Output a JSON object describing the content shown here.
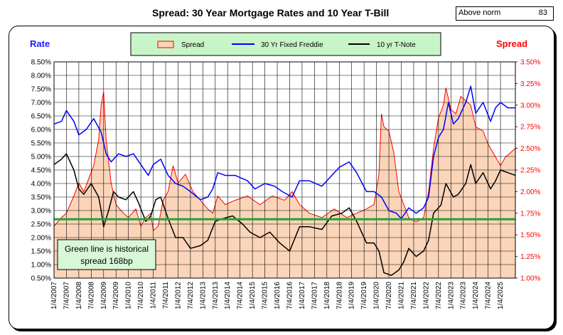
{
  "header": {
    "title": "Spread:  30 Year Mortgage Rates and 10 Year T-Bill",
    "indicator_label": "Above norm",
    "indicator_value": "83"
  },
  "colors": {
    "spread_fill": "#fbd5b9",
    "spread_line": "#ff0000",
    "mortgage_line": "#0000ff",
    "tnote_line": "#000000",
    "norm_line": "#22a535",
    "legend_bg": "#c8f5c8",
    "annotation_bg": "#d7f7d7",
    "left_axis_label": "#1a1aff",
    "right_axis_label": "#ff0000"
  },
  "chart_data": {
    "type": "line",
    "title": "Spread:  30 Year Mortgage Rates and 10 Year T-Bill",
    "ylabel": "Rate",
    "y2label": "Spread",
    "ylim": [
      0.5,
      8.5
    ],
    "y2lim": [
      1.0,
      3.5
    ],
    "yticks": [
      "0.50%",
      "1.00%",
      "1.50%",
      "2.00%",
      "2.50%",
      "3.00%",
      "3.50%",
      "4.00%",
      "4.50%",
      "5.00%",
      "5.50%",
      "6.00%",
      "6.50%",
      "7.00%",
      "7.50%",
      "8.00%",
      "8.50%"
    ],
    "y2ticks": [
      "1.00%",
      "1.25%",
      "1.50%",
      "1.75%",
      "2.00%",
      "2.25%",
      "2.50%",
      "2.75%",
      "3.00%",
      "3.25%",
      "3.50%"
    ],
    "xticks": [
      "1/4/2007",
      "7/4/2007",
      "1/4/2008",
      "7/4/2008",
      "1/4/2009",
      "7/4/2009",
      "1/4/2010",
      "7/4/2010",
      "1/4/2011",
      "7/4/2011",
      "1/4/2012",
      "7/4/2012",
      "1/4/2013",
      "7/4/2013",
      "1/4/2014",
      "7/4/2014",
      "1/4/2015",
      "7/4/2015",
      "1/4/2016",
      "7/4/2016",
      "1/4/2017",
      "7/4/2017",
      "1/4/2018",
      "7/4/2018",
      "1/4/2019",
      "7/4/2019",
      "1/4/2020",
      "7/4/2020",
      "1/4/2021",
      "7/4/2021",
      "1/4/2022",
      "7/4/2022",
      "1/4/2023",
      "7/4/2023",
      "1/4/2024",
      "7/4/2024",
      "1/4/2025"
    ],
    "xlim": [
      2007.0,
      2025.6
    ],
    "grid": true,
    "legend_position": "top-center",
    "norm_spread": 1.68,
    "annotation": [
      "Green line is historical",
      "spread 168bp"
    ],
    "series": [
      {
        "name": "Spread",
        "axis": "right",
        "style": "area",
        "x": [
          2007.0,
          2007.3,
          2007.5,
          2007.8,
          2008.0,
          2008.2,
          2008.4,
          2008.6,
          2008.8,
          2008.9,
          2009.0,
          2009.1,
          2009.3,
          2009.5,
          2009.8,
          2010.0,
          2010.3,
          2010.5,
          2010.7,
          2010.9,
          2011.0,
          2011.2,
          2011.4,
          2011.6,
          2011.8,
          2012.0,
          2012.3,
          2012.6,
          2012.9,
          2013.2,
          2013.4,
          2013.6,
          2013.9,
          2014.3,
          2014.8,
          2015.3,
          2015.8,
          2016.3,
          2016.6,
          2016.9,
          2017.3,
          2017.8,
          2018.3,
          2018.8,
          2019.2,
          2019.6,
          2019.9,
          2020.1,
          2020.2,
          2020.3,
          2020.5,
          2020.7,
          2020.9,
          2021.1,
          2021.3,
          2021.6,
          2021.9,
          2022.1,
          2022.3,
          2022.5,
          2022.7,
          2022.8,
          2023.0,
          2023.2,
          2023.4,
          2023.6,
          2023.8,
          2024.0,
          2024.3,
          2024.5,
          2024.8,
          2025.0,
          2025.2,
          2025.4,
          2025.6
        ],
        "values": [
          1.6,
          1.7,
          1.75,
          1.95,
          2.1,
          2.0,
          2.15,
          2.3,
          2.6,
          3.0,
          3.15,
          2.6,
          2.1,
          1.85,
          1.75,
          1.7,
          1.8,
          1.6,
          1.7,
          1.75,
          1.55,
          1.6,
          1.9,
          2.0,
          2.3,
          2.1,
          2.2,
          2.0,
          1.9,
          1.8,
          1.75,
          1.95,
          1.85,
          1.9,
          1.95,
          1.85,
          1.95,
          1.9,
          2.0,
          1.85,
          1.75,
          1.7,
          1.8,
          1.7,
          1.75,
          1.8,
          1.85,
          2.2,
          2.9,
          2.75,
          2.7,
          2.45,
          2.0,
          1.85,
          1.7,
          1.65,
          1.7,
          2.0,
          2.5,
          2.85,
          3.0,
          3.2,
          2.95,
          2.9,
          3.1,
          3.05,
          3.0,
          2.75,
          2.7,
          2.55,
          2.4,
          2.3,
          2.4,
          2.45,
          2.5
        ]
      },
      {
        "name": "30 Yr Fixed Freddie",
        "axis": "left",
        "style": "line",
        "x": [
          2007.0,
          2007.3,
          2007.5,
          2007.8,
          2008.0,
          2008.3,
          2008.6,
          2008.9,
          2009.1,
          2009.3,
          2009.6,
          2009.9,
          2010.2,
          2010.5,
          2010.8,
          2011.0,
          2011.3,
          2011.6,
          2011.9,
          2012.2,
          2012.5,
          2012.9,
          2013.2,
          2013.4,
          2013.6,
          2013.9,
          2014.3,
          2014.8,
          2015.1,
          2015.5,
          2015.9,
          2016.2,
          2016.6,
          2016.9,
          2017.3,
          2017.8,
          2018.2,
          2018.5,
          2018.9,
          2019.2,
          2019.6,
          2019.9,
          2020.2,
          2020.5,
          2020.8,
          2021.0,
          2021.3,
          2021.6,
          2021.9,
          2022.1,
          2022.3,
          2022.5,
          2022.7,
          2022.9,
          2023.1,
          2023.3,
          2023.6,
          2023.8,
          2024.0,
          2024.3,
          2024.6,
          2024.8,
          2025.0,
          2025.3,
          2025.6
        ],
        "values": [
          6.2,
          6.3,
          6.7,
          6.3,
          5.8,
          6.0,
          6.4,
          5.9,
          5.1,
          4.8,
          5.1,
          5.0,
          5.1,
          4.7,
          4.3,
          4.7,
          4.9,
          4.3,
          4.0,
          3.9,
          3.7,
          3.4,
          3.5,
          3.8,
          4.4,
          4.3,
          4.3,
          4.1,
          3.8,
          4.0,
          3.9,
          3.7,
          3.5,
          4.1,
          4.1,
          3.9,
          4.3,
          4.6,
          4.8,
          4.4,
          3.7,
          3.7,
          3.5,
          3.0,
          2.9,
          2.7,
          3.1,
          2.9,
          3.1,
          3.5,
          5.0,
          5.7,
          6.0,
          7.0,
          6.2,
          6.4,
          7.0,
          7.6,
          6.6,
          7.0,
          6.3,
          6.8,
          7.0,
          6.8,
          6.8
        ]
      },
      {
        "name": "10 yr T-Note",
        "axis": "left",
        "style": "line",
        "x": [
          2007.0,
          2007.3,
          2007.5,
          2007.8,
          2008.0,
          2008.2,
          2008.5,
          2008.8,
          2008.9,
          2009.0,
          2009.2,
          2009.4,
          2009.6,
          2009.9,
          2010.2,
          2010.4,
          2010.7,
          2010.9,
          2011.1,
          2011.3,
          2011.6,
          2011.9,
          2012.2,
          2012.5,
          2012.9,
          2013.2,
          2013.5,
          2013.8,
          2014.2,
          2014.6,
          2014.9,
          2015.3,
          2015.7,
          2016.1,
          2016.5,
          2016.9,
          2017.3,
          2017.8,
          2018.2,
          2018.6,
          2018.9,
          2019.2,
          2019.6,
          2019.9,
          2020.1,
          2020.3,
          2020.6,
          2020.9,
          2021.1,
          2021.3,
          2021.6,
          2021.9,
          2022.1,
          2022.3,
          2022.6,
          2022.8,
          2023.1,
          2023.3,
          2023.6,
          2023.8,
          2024.0,
          2024.3,
          2024.6,
          2024.8,
          2025.0,
          2025.3,
          2025.6
        ],
        "values": [
          4.7,
          4.9,
          5.1,
          4.5,
          3.8,
          3.6,
          4.0,
          3.5,
          3.0,
          2.4,
          3.0,
          3.7,
          3.5,
          3.4,
          3.7,
          3.3,
          2.6,
          2.8,
          3.4,
          3.5,
          2.7,
          2.0,
          2.0,
          1.6,
          1.7,
          1.9,
          2.6,
          2.7,
          2.8,
          2.5,
          2.2,
          2.0,
          2.2,
          1.8,
          1.5,
          2.4,
          2.4,
          2.3,
          2.8,
          2.9,
          3.1,
          2.6,
          1.8,
          1.8,
          1.5,
          0.7,
          0.6,
          0.8,
          1.1,
          1.6,
          1.3,
          1.5,
          1.9,
          2.9,
          3.2,
          4.0,
          3.5,
          3.6,
          4.0,
          4.7,
          4.0,
          4.4,
          3.8,
          4.1,
          4.5,
          4.4,
          4.3
        ]
      }
    ]
  }
}
